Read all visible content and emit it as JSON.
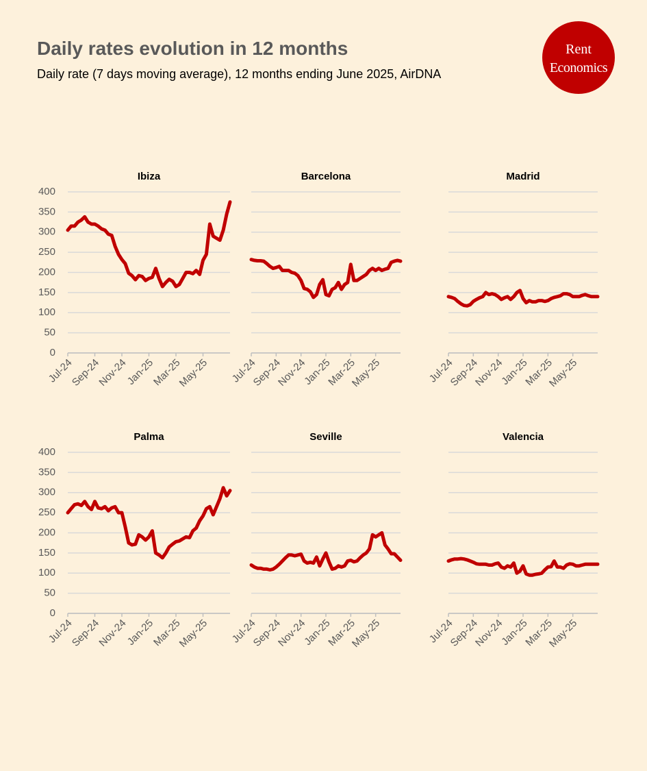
{
  "header": {
    "title": "Daily rates evolution in 12 months",
    "subtitle": "Daily rate (7 days moving average), 12 months ending June 2025, AirDNA",
    "logo": [
      "Rent",
      "Economics"
    ]
  },
  "chart_data": [
    {
      "type": "line",
      "title": "Ibiza",
      "color": "#c00000",
      "ylim": [
        0,
        400
      ],
      "yticks": [
        0,
        50,
        100,
        150,
        200,
        250,
        300,
        350,
        400
      ],
      "grid": true,
      "xticks": [
        "Jul-24",
        "Sep-24",
        "Nov-24",
        "Jan-25",
        "Mar-25",
        "May-25"
      ],
      "values": [
        305,
        315,
        315,
        325,
        330,
        338,
        325,
        320,
        320,
        315,
        308,
        305,
        295,
        292,
        265,
        245,
        232,
        222,
        198,
        192,
        182,
        192,
        190,
        180,
        185,
        188,
        210,
        185,
        165,
        175,
        183,
        178,
        165,
        170,
        185,
        200,
        200,
        197,
        205,
        195,
        230,
        245,
        320,
        290,
        285,
        280,
        305,
        345,
        375
      ]
    },
    {
      "type": "line",
      "title": "Barcelona",
      "color": "#c00000",
      "ylim": [
        0,
        400
      ],
      "yticks": [
        0,
        50,
        100,
        150,
        200,
        250,
        300,
        350,
        400
      ],
      "grid": true,
      "xticks": [
        "Jul-24",
        "Sep-24",
        "Nov-24",
        "Jan-25",
        "Mar-25",
        "May-25"
      ],
      "values": [
        232,
        230,
        229,
        229,
        228,
        222,
        215,
        210,
        212,
        215,
        205,
        205,
        205,
        200,
        198,
        192,
        180,
        160,
        158,
        152,
        138,
        145,
        170,
        182,
        145,
        142,
        158,
        162,
        175,
        158,
        170,
        175,
        220,
        180,
        180,
        185,
        190,
        195,
        205,
        210,
        205,
        210,
        205,
        208,
        210,
        225,
        228,
        230,
        228
      ]
    },
    {
      "type": "line",
      "title": "Madrid",
      "color": "#c00000",
      "ylim": [
        0,
        400
      ],
      "yticks": [
        0,
        50,
        100,
        150,
        200,
        250,
        300,
        350,
        400
      ],
      "grid": true,
      "xticks": [
        "Jul-24",
        "Sep-24",
        "Nov-24",
        "Jan-25",
        "Mar-25",
        "May-25"
      ],
      "values": [
        140,
        138,
        135,
        128,
        122,
        118,
        117,
        120,
        128,
        133,
        137,
        140,
        150,
        145,
        147,
        145,
        140,
        133,
        137,
        140,
        133,
        140,
        150,
        155,
        135,
        125,
        130,
        127,
        127,
        130,
        130,
        128,
        130,
        135,
        138,
        140,
        142,
        147,
        147,
        145,
        140,
        140,
        140,
        143,
        145,
        142,
        140,
        140,
        140
      ]
    },
    {
      "type": "line",
      "title": "Palma",
      "color": "#c00000",
      "ylim": [
        0,
        400
      ],
      "yticks": [
        0,
        50,
        100,
        150,
        200,
        250,
        300,
        350,
        400
      ],
      "grid": true,
      "xticks": [
        "Jul-24",
        "Sep-24",
        "Nov-24",
        "Jan-25",
        "Mar-25",
        "May-25"
      ],
      "values": [
        250,
        260,
        270,
        272,
        268,
        278,
        265,
        258,
        278,
        262,
        260,
        265,
        255,
        262,
        265,
        250,
        250,
        215,
        175,
        170,
        172,
        195,
        190,
        182,
        190,
        205,
        150,
        145,
        138,
        150,
        165,
        172,
        178,
        180,
        185,
        190,
        188,
        205,
        212,
        230,
        242,
        260,
        265,
        245,
        265,
        285,
        312,
        292,
        305
      ]
    },
    {
      "type": "line",
      "title": "Seville",
      "color": "#c00000",
      "ylim": [
        0,
        400
      ],
      "yticks": [
        0,
        50,
        100,
        150,
        200,
        250,
        300,
        350,
        400
      ],
      "grid": true,
      "xticks": [
        "Jul-24",
        "Sep-24",
        "Nov-24",
        "Jan-25",
        "Mar-25",
        "May-25"
      ],
      "values": [
        120,
        115,
        112,
        112,
        110,
        110,
        108,
        110,
        115,
        122,
        130,
        138,
        145,
        145,
        143,
        145,
        147,
        130,
        125,
        127,
        125,
        140,
        118,
        135,
        150,
        128,
        110,
        112,
        118,
        115,
        118,
        130,
        132,
        128,
        130,
        138,
        145,
        150,
        160,
        195,
        190,
        195,
        200,
        170,
        160,
        148,
        148,
        140,
        132
      ]
    },
    {
      "type": "line",
      "title": "Valencia",
      "color": "#c00000",
      "ylim": [
        0,
        400
      ],
      "yticks": [
        0,
        50,
        100,
        150,
        200,
        250,
        300,
        350,
        400
      ],
      "grid": true,
      "xticks": [
        "Jul-24",
        "Sep-24",
        "Nov-24",
        "Jan-25",
        "Mar-25",
        "May-25"
      ],
      "values": [
        130,
        133,
        135,
        135,
        136,
        135,
        133,
        130,
        127,
        123,
        122,
        122,
        122,
        120,
        120,
        123,
        125,
        115,
        112,
        118,
        115,
        125,
        100,
        105,
        118,
        98,
        95,
        95,
        97,
        98,
        100,
        108,
        115,
        116,
        130,
        115,
        115,
        112,
        120,
        123,
        122,
        118,
        118,
        120,
        122,
        122,
        122,
        122,
        122
      ]
    }
  ]
}
